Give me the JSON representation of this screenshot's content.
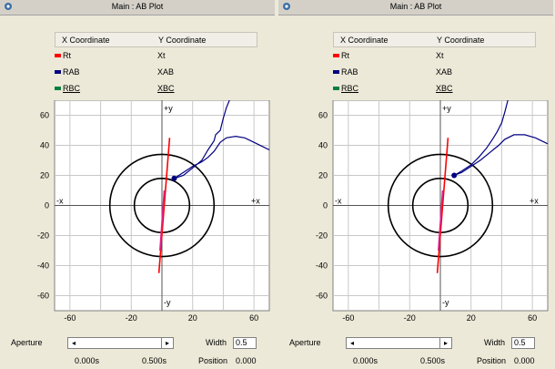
{
  "panels": [
    {
      "title": "Main : AB Plot",
      "legend": {
        "x_header": "X Coordinate",
        "y_header": "Y Coordinate",
        "rows": [
          {
            "x": "Rt",
            "y": "Xt",
            "color": "#ff0000"
          },
          {
            "x": "RAB",
            "y": "XAB",
            "color": "#000080"
          },
          {
            "x": "RBC",
            "y": "XBC",
            "color": "#008040"
          }
        ]
      },
      "plot": {
        "xlim": [
          -70,
          70
        ],
        "ylim": [
          -70,
          70
        ],
        "x_ticks": [
          "-60",
          "-20",
          "20",
          "60"
        ],
        "y_ticks": [
          "60",
          "40",
          "20",
          "0",
          "-20",
          "-40",
          "-60"
        ],
        "x_tick_values": [
          -60,
          -20,
          20,
          60
        ],
        "y_tick_values": [
          60,
          40,
          20,
          0,
          -20,
          -40,
          -60
        ],
        "axis_labels": {
          "pos_y": "+y",
          "neg_y": "-y",
          "pos_x": "+x",
          "neg_x": "-x"
        },
        "circles": [
          {
            "cx": 0,
            "cy": 0,
            "r": 34
          },
          {
            "cx": 0,
            "cy": 0,
            "r": 18
          }
        ],
        "rt_line": [
          [
            -2,
            -45
          ],
          [
            5,
            45
          ]
        ],
        "rab_curve": [
          [
            8,
            18
          ],
          [
            14,
            20
          ],
          [
            20,
            25
          ],
          [
            26,
            30
          ],
          [
            30,
            37
          ],
          [
            34,
            43
          ],
          [
            35,
            47
          ],
          [
            38,
            50
          ],
          [
            40,
            58
          ],
          [
            42,
            65
          ],
          [
            44,
            70
          ]
        ],
        "rbc_curve": [
          [
            8,
            18
          ],
          [
            14,
            22
          ],
          [
            20,
            26
          ],
          [
            26,
            29
          ],
          [
            30,
            32
          ],
          [
            34,
            36
          ],
          [
            38,
            42
          ],
          [
            42,
            45
          ],
          [
            48,
            46
          ],
          [
            54,
            45
          ],
          [
            60,
            42
          ],
          [
            66,
            39
          ],
          [
            70,
            37
          ]
        ],
        "dot": [
          8,
          18
        ]
      },
      "controls": {
        "aperture_label": "Aperture",
        "left_arrow": "◂",
        "right_arrow": "▸",
        "width_label": "Width",
        "width_value": "0.5",
        "time_start": "0.000s",
        "time_mid": "0.500s",
        "position_label": "Position",
        "position_value": "0.000"
      }
    },
    {
      "title": "Main : AB Plot",
      "legend": {
        "x_header": "X Coordinate",
        "y_header": "Y Coordinate",
        "rows": [
          {
            "x": "Rt",
            "y": "Xt",
            "color": "#ff0000"
          },
          {
            "x": "RAB",
            "y": "XAB",
            "color": "#000080"
          },
          {
            "x": "RBC",
            "y": "XBC",
            "color": "#008040"
          }
        ]
      },
      "plot": {
        "xlim": [
          -70,
          70
        ],
        "ylim": [
          -70,
          70
        ],
        "x_ticks": [
          "-60",
          "-20",
          "20",
          "60"
        ],
        "y_ticks": [
          "60",
          "40",
          "20",
          "0",
          "-20",
          "-40",
          "-60"
        ],
        "x_tick_values": [
          -60,
          -20,
          20,
          60
        ],
        "y_tick_values": [
          60,
          40,
          20,
          0,
          -20,
          -40,
          -60
        ],
        "axis_labels": {
          "pos_y": "+y",
          "neg_y": "-y",
          "pos_x": "+x",
          "neg_x": "-x"
        },
        "circles": [
          {
            "cx": 0,
            "cy": 0,
            "r": 34
          },
          {
            "cx": 0,
            "cy": 0,
            "r": 18
          }
        ],
        "rt_line": [
          [
            -2,
            -45
          ],
          [
            5,
            45
          ]
        ],
        "rab_curve": [
          [
            9,
            20
          ],
          [
            14,
            23
          ],
          [
            20,
            27
          ],
          [
            25,
            32
          ],
          [
            30,
            38
          ],
          [
            34,
            44
          ],
          [
            37,
            49
          ],
          [
            40,
            55
          ],
          [
            42,
            62
          ],
          [
            44,
            70
          ]
        ],
        "rbc_curve": [
          [
            9,
            20
          ],
          [
            14,
            22
          ],
          [
            20,
            26
          ],
          [
            26,
            30
          ],
          [
            32,
            35
          ],
          [
            38,
            40
          ],
          [
            42,
            44
          ],
          [
            48,
            47
          ],
          [
            55,
            47
          ],
          [
            62,
            45
          ],
          [
            68,
            42
          ],
          [
            70,
            41
          ]
        ],
        "dot": [
          9,
          20
        ]
      },
      "controls": {
        "aperture_label": "Aperture",
        "left_arrow": "◂",
        "right_arrow": "▸",
        "width_label": "Width",
        "width_value": "0.5",
        "time_start": "0.000s",
        "time_mid": "0.500s",
        "position_label": "Position",
        "position_value": "0.000"
      }
    }
  ]
}
